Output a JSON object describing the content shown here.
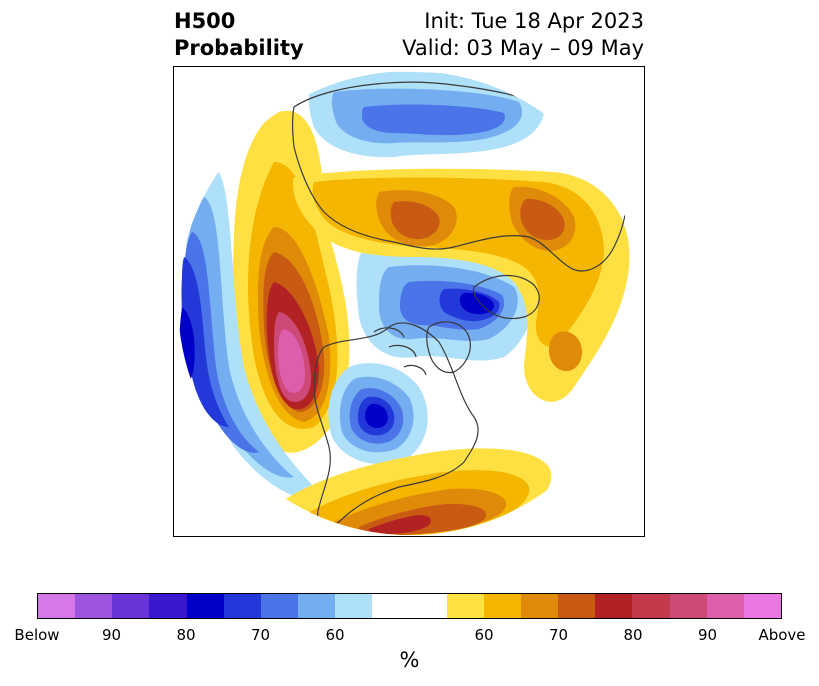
{
  "title": {
    "left_line1": "H500",
    "left_line2": "Probability",
    "right_line1": "Init: Tue 18 Apr 2023",
    "right_line2": "Valid: 03 May – 09 May"
  },
  "colorbar": {
    "below_colors": [
      "#d778e8",
      "#9d55e0",
      "#6a35d8",
      "#3a18d0",
      "#0000c8",
      "#2238d8",
      "#4a74e8",
      "#74aef0",
      "#aee0fa"
    ],
    "above_colors": [
      "#ffe042",
      "#f4b600",
      "#e08a0a",
      "#c85a12",
      "#b22222",
      "#c43a4c",
      "#cd4a78",
      "#dd5eaa",
      "#e878e0"
    ],
    "tick_labels": [
      "Below",
      "90",
      "80",
      "70",
      "60",
      "60",
      "70",
      "80",
      "90",
      "Above"
    ],
    "unit_label": "%"
  },
  "map": {
    "projection": "north-polar-stereographic",
    "style": {
      "below_levels": [
        "#aee0fa",
        "#74aef0",
        "#4a74e8",
        "#2238d8",
        "#0000c8"
      ],
      "above_levels": [
        "#ffe042",
        "#f4b600",
        "#e08a0a",
        "#c85a12",
        "#b22222",
        "#c43a4c",
        "#cd4a78",
        "#dd5eaa"
      ],
      "coastline_color": "#3a3a3a"
    }
  }
}
